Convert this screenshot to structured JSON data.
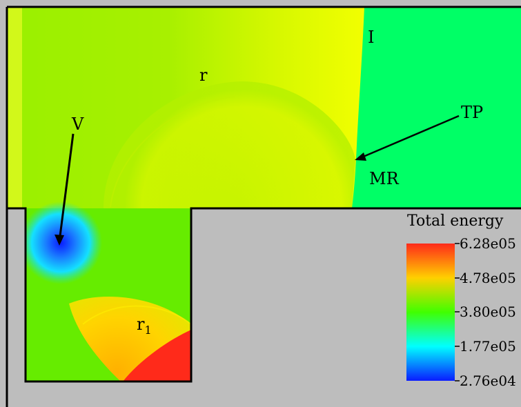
{
  "labels": {
    "incident_shock": "I",
    "reflected_shock": "r",
    "vortex": "V",
    "triple_point": "TP",
    "mach_reflection": "MR",
    "secondary_reflected": "r",
    "secondary_reflected_sub": "1"
  },
  "legend": {
    "title": "Total energy",
    "ticks": [
      "6.28e05",
      "4.78e05",
      "3.80e05",
      "1.77e05",
      "2.76e04"
    ]
  },
  "colors": {
    "solid_wall": "#bdbdbd",
    "high": "#ff2a1a",
    "mid_high": "#ffff00",
    "mid": "#33ff00",
    "mid_low": "#00ffff",
    "low": "#0a1cff",
    "post_shock": "#00ff66"
  }
}
